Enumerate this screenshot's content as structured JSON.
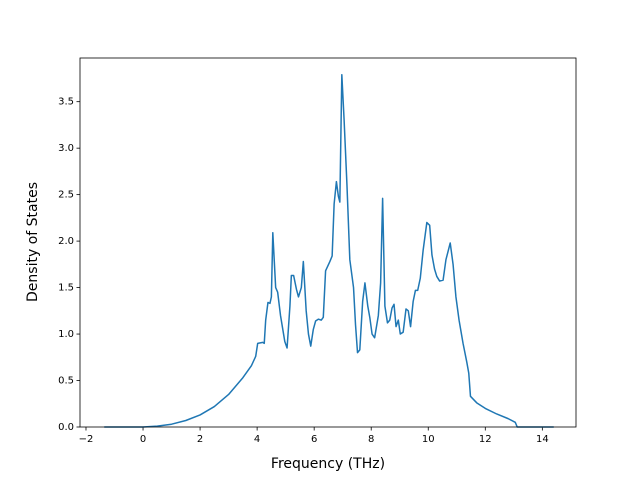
{
  "chart_data": {
    "type": "line",
    "x_label": "Frequency (THz)",
    "y_label": "Density of States",
    "xlim": [
      -2.21,
      15.18
    ],
    "ylim": [
      0,
      3.97
    ],
    "xticks": [
      {
        "value": -2,
        "label": "−2"
      },
      0,
      2,
      4,
      6,
      8,
      10,
      12,
      14
    ],
    "yticks": [
      {
        "value": 0,
        "label": "0.0"
      },
      0.5,
      {
        "value": 1,
        "label": "1.0"
      },
      1.5,
      {
        "value": 2,
        "label": "2.0"
      },
      2.5,
      {
        "value": 3,
        "label": "3.0"
      },
      3.5
    ],
    "color": "#1f77b4",
    "x": [
      -1.36,
      0,
      0.5,
      1,
      1.5,
      2,
      2.5,
      3,
      3.5,
      3.8,
      3.95,
      4.02,
      4.2,
      4.25,
      4.3,
      4.38,
      4.45,
      4.5,
      4.55,
      4.65,
      4.72,
      4.82,
      4.97,
      5.05,
      5.15,
      5.2,
      5.28,
      5.38,
      5.45,
      5.55,
      5.62,
      5.72,
      5.8,
      5.88,
      5.97,
      6.05,
      6.15,
      6.25,
      6.32,
      6.4,
      6.55,
      6.63,
      6.7,
      6.78,
      6.85,
      6.9,
      6.97,
      7.05,
      7.15,
      7.25,
      7.38,
      7.45,
      7.52,
      7.6,
      7.7,
      7.78,
      7.88,
      7.95,
      8.03,
      8.12,
      8.25,
      8.33,
      8.4,
      8.48,
      8.57,
      8.65,
      8.73,
      8.8,
      8.87,
      8.95,
      9.02,
      9.12,
      9.22,
      9.3,
      9.38,
      9.47,
      9.55,
      9.63,
      9.72,
      9.82,
      9.95,
      10.05,
      10.13,
      10.22,
      10.3,
      10.4,
      10.52,
      10.62,
      10.77,
      10.87,
      10.97,
      11.08,
      11.22,
      11.35,
      11.42,
      11.48,
      11.7,
      12,
      12.4,
      12.8,
      13.05,
      13.12,
      14.4
    ],
    "values": [
      0,
      0,
      0.01,
      0.03,
      0.07,
      0.13,
      0.22,
      0.35,
      0.53,
      0.66,
      0.76,
      0.9,
      0.91,
      0.9,
      1.15,
      1.34,
      1.33,
      1.4,
      2.09,
      1.5,
      1.45,
      1.2,
      0.92,
      0.85,
      1.3,
      1.63,
      1.63,
      1.48,
      1.4,
      1.5,
      1.78,
      1.25,
      1.0,
      0.87,
      1.05,
      1.14,
      1.16,
      1.15,
      1.18,
      1.68,
      1.78,
      1.84,
      2.4,
      2.64,
      2.48,
      2.42,
      3.79,
      3.3,
      2.6,
      1.8,
      1.5,
      1.1,
      0.8,
      0.83,
      1.35,
      1.55,
      1.3,
      1.18,
      1.0,
      0.96,
      1.2,
      1.55,
      2.46,
      1.3,
      1.12,
      1.15,
      1.28,
      1.32,
      1.08,
      1.15,
      1.0,
      1.02,
      1.27,
      1.25,
      1.08,
      1.35,
      1.47,
      1.47,
      1.6,
      1.9,
      2.2,
      2.17,
      1.85,
      1.7,
      1.62,
      1.57,
      1.58,
      1.8,
      1.98,
      1.75,
      1.4,
      1.15,
      0.9,
      0.7,
      0.58,
      0.33,
      0.26,
      0.2,
      0.14,
      0.09,
      0.05,
      0,
      0
    ]
  }
}
